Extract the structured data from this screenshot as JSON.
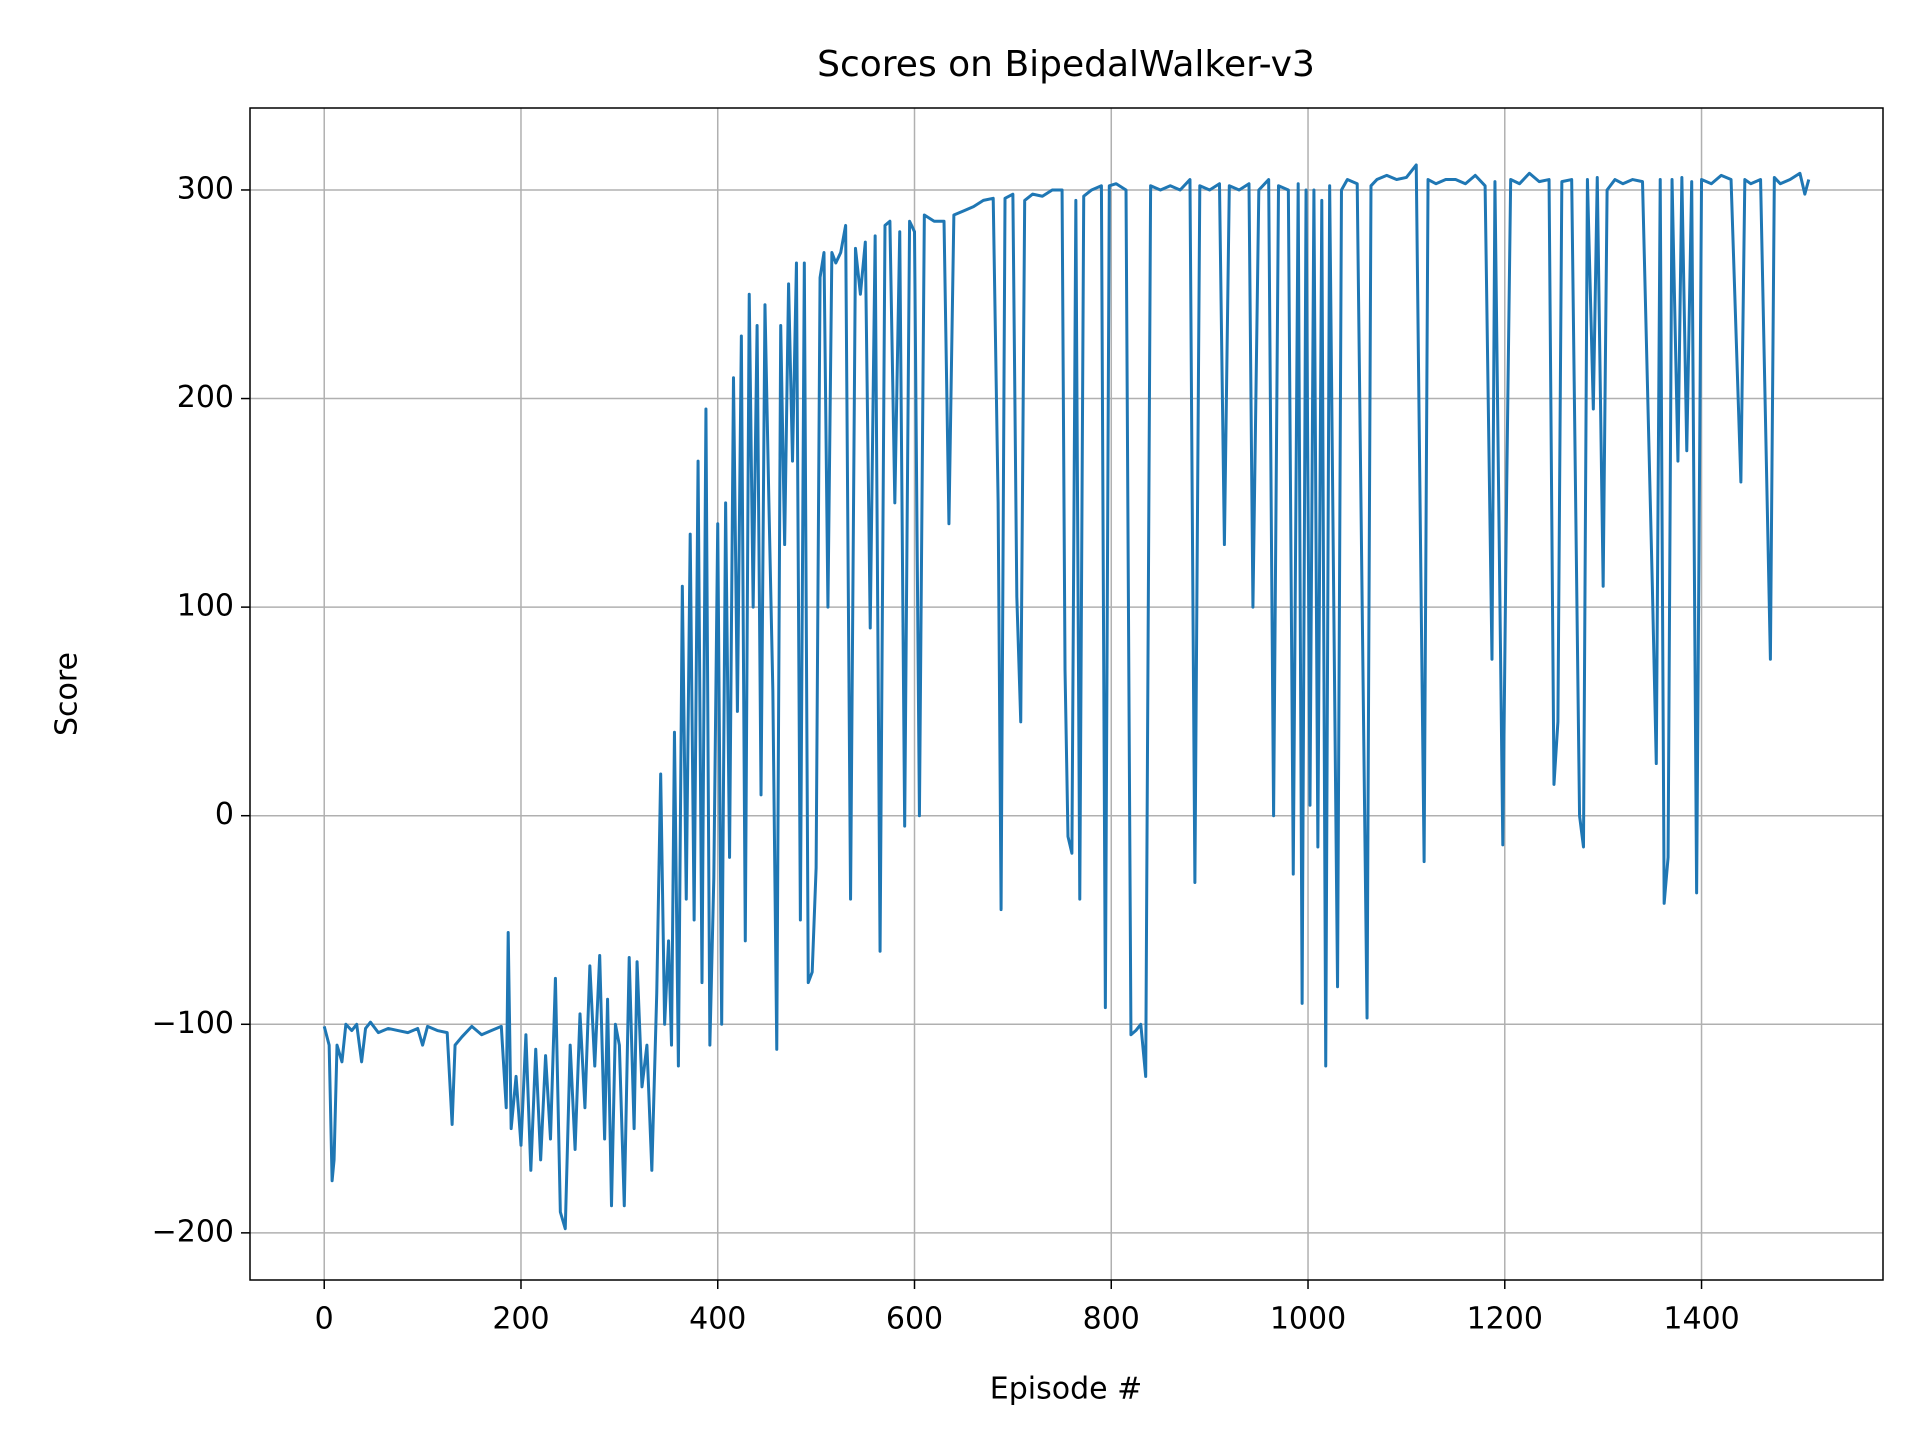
{
  "chart_data": {
    "type": "line",
    "title": "Scores on BipedalWalker-v3",
    "x_label": "Episode #",
    "y_label": "Score",
    "color": "#1f77b4",
    "grid": true,
    "xlim": [
      -75.45,
      1584.45
    ],
    "ylim": [
      -222.6,
      339.3
    ],
    "xticks": [
      0,
      200,
      400,
      600,
      800,
      1000,
      1200,
      1400
    ],
    "yticks": [
      {
        "value": -200,
        "label": "−200"
      },
      {
        "value": -100,
        "label": "−100"
      },
      0,
      100,
      200,
      300
    ],
    "x": [
      0,
      5,
      8,
      10,
      13,
      18,
      22,
      28,
      33,
      38,
      42,
      47,
      55,
      65,
      75,
      85,
      95,
      100,
      105,
      115,
      125,
      130,
      133,
      140,
      150,
      160,
      170,
      180,
      185,
      187,
      190,
      195,
      200,
      205,
      210,
      215,
      220,
      225,
      230,
      235,
      240,
      245,
      250,
      255,
      260,
      265,
      270,
      275,
      280,
      285,
      288,
      292,
      296,
      300,
      305,
      310,
      315,
      318,
      323,
      328,
      333,
      338,
      342,
      346,
      350,
      353,
      356,
      360,
      364,
      368,
      372,
      376,
      380,
      384,
      388,
      392,
      396,
      400,
      404,
      408,
      412,
      416,
      420,
      424,
      428,
      432,
      436,
      440,
      444,
      448,
      452,
      456,
      460,
      464,
      468,
      472,
      476,
      480,
      484,
      488,
      492,
      496,
      500,
      504,
      508,
      512,
      516,
      520,
      525,
      530,
      535,
      540,
      545,
      550,
      555,
      560,
      565,
      570,
      575,
      580,
      585,
      590,
      595,
      600,
      605,
      610,
      620,
      630,
      635,
      640,
      650,
      660,
      670,
      680,
      685,
      688,
      692,
      700,
      704,
      708,
      712,
      720,
      730,
      740,
      750,
      753,
      756,
      760,
      764,
      768,
      772,
      780,
      790,
      794,
      798,
      805,
      815,
      820,
      825,
      830,
      835,
      840,
      850,
      860,
      870,
      880,
      885,
      890,
      900,
      910,
      915,
      920,
      930,
      940,
      944,
      950,
      960,
      965,
      970,
      980,
      985,
      990,
      994,
      998,
      1002,
      1006,
      1010,
      1014,
      1018,
      1022,
      1030,
      1034,
      1040,
      1050,
      1060,
      1064,
      1070,
      1080,
      1090,
      1100,
      1110,
      1118,
      1122,
      1130,
      1140,
      1150,
      1160,
      1170,
      1180,
      1187,
      1190,
      1198,
      1202,
      1206,
      1215,
      1225,
      1235,
      1245,
      1250,
      1254,
      1258,
      1268,
      1276,
      1280,
      1284,
      1290,
      1294,
      1300,
      1304,
      1312,
      1320,
      1330,
      1340,
      1350,
      1354,
      1358,
      1362,
      1366,
      1370,
      1376,
      1380,
      1385,
      1390,
      1395,
      1400,
      1410,
      1420,
      1430,
      1440,
      1444,
      1450,
      1460,
      1470,
      1474,
      1480,
      1490,
      1500,
      1505,
      1509
    ],
    "values": [
      -101,
      -110,
      -175,
      -165,
      -110,
      -118,
      -100,
      -103,
      -100,
      -118,
      -102,
      -99,
      -104,
      -102,
      -103,
      -104,
      -102,
      -110,
      -101,
      -103,
      -104,
      -148,
      -110,
      -106,
      -101,
      -105,
      -103,
      -101,
      -140,
      -56,
      -150,
      -125,
      -158,
      -105,
      -170,
      -112,
      -165,
      -115,
      -155,
      -78,
      -190,
      -198,
      -110,
      -160,
      -95,
      -140,
      -72,
      -120,
      -67,
      -155,
      -88,
      -187,
      -100,
      -110,
      -187,
      -68,
      -150,
      -70,
      -130,
      -110,
      -170,
      -85,
      20,
      -100,
      -60,
      -110,
      40,
      -120,
      110,
      -40,
      135,
      -50,
      170,
      -80,
      195,
      -110,
      -30,
      140,
      -100,
      150,
      -20,
      210,
      50,
      230,
      -60,
      250,
      100,
      235,
      10,
      245,
      150,
      60,
      -112,
      235,
      130,
      255,
      170,
      265,
      -50,
      265,
      -80,
      -75,
      -25,
      258,
      270,
      100,
      270,
      265,
      270,
      283,
      -40,
      272,
      250,
      275,
      90,
      278,
      -65,
      283,
      285,
      150,
      280,
      -5,
      285,
      280,
      0,
      288,
      285,
      285,
      140,
      288,
      290,
      292,
      295,
      296,
      150,
      -45,
      296,
      298,
      105,
      45,
      295,
      298,
      297,
      300,
      300,
      70,
      -10,
      -18,
      295,
      -40,
      297,
      300,
      302,
      -92,
      302,
      303,
      300,
      -105,
      -103,
      -100,
      -125,
      302,
      300,
      302,
      300,
      305,
      -32,
      302,
      300,
      303,
      130,
      302,
      300,
      303,
      100,
      300,
      305,
      0,
      302,
      300,
      -28,
      303,
      -90,
      300,
      5,
      300,
      -15,
      295,
      -120,
      302,
      -82,
      300,
      305,
      303,
      -97,
      302,
      305,
      307,
      305,
      306,
      312,
      -22,
      305,
      303,
      305,
      305,
      303,
      307,
      302,
      75,
      304,
      -14,
      160,
      305,
      303,
      308,
      304,
      305,
      15,
      45,
      304,
      305,
      0,
      -15,
      305,
      195,
      306,
      110,
      300,
      305,
      303,
      305,
      304,
      110,
      25,
      305,
      -42,
      -20,
      305,
      170,
      306,
      175,
      304,
      -37,
      305,
      303,
      307,
      305,
      160,
      305,
      303,
      305,
      75,
      306,
      303,
      305,
      308,
      298,
      305
    ]
  }
}
